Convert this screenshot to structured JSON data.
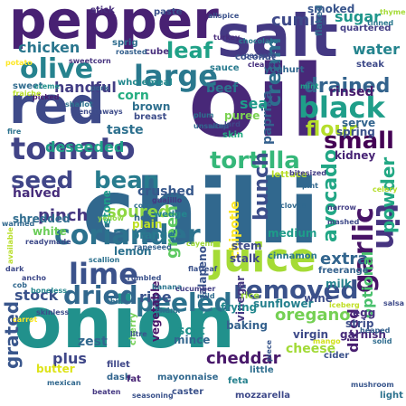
{
  "words": [
    {
      "text": "chilli",
      "color": "#31688e"
    },
    {
      "text": "onion",
      "color": "#21918c"
    },
    {
      "text": "oil",
      "color": "#482878"
    },
    {
      "text": "pepper",
      "color": "#482173"
    },
    {
      "text": "salt",
      "color": "#443983"
    },
    {
      "text": "red",
      "color": "#3e4a89"
    },
    {
      "text": "juice",
      "color": "#a5db36"
    },
    {
      "text": "coriander",
      "color": "#2c728e"
    },
    {
      "text": "lime",
      "color": "#3b528b"
    },
    {
      "text": "tomato",
      "color": "#414487"
    },
    {
      "text": "black",
      "color": "#1f9e89"
    },
    {
      "text": "large",
      "color": "#2a788e"
    },
    {
      "text": "olive",
      "color": "#26828e"
    },
    {
      "text": "garlic",
      "color": "#481467"
    },
    {
      "text": "tortilla",
      "color": "#35b779"
    },
    {
      "text": "removed",
      "color": "#3b528b"
    },
    {
      "text": "peeled",
      "color": "#2c728e"
    },
    {
      "text": "dried",
      "color": "#31688e"
    },
    {
      "text": "tin",
      "color": "#463480"
    },
    {
      "text": "bean",
      "color": "#287c8e"
    },
    {
      "text": "small",
      "color": "#440154"
    },
    {
      "text": "seed",
      "color": "#404688"
    },
    {
      "text": "cream",
      "color": "#2e6e8e"
    },
    {
      "text": "bunch",
      "color": "#3d4d8a"
    },
    {
      "text": "avocado",
      "color": "#21a685"
    },
    {
      "text": "powder",
      "color": "#22a884"
    },
    {
      "text": "drained",
      "color": "#33638d"
    },
    {
      "text": "leaf",
      "color": "#1fa187"
    },
    {
      "text": "cumin",
      "color": "#3e4989"
    },
    {
      "text": "flour",
      "color": "#b5de2b"
    },
    {
      "text": "grated",
      "color": "#39568c"
    },
    {
      "text": "oregano",
      "color": "#75d054"
    },
    {
      "text": "green",
      "color": "#5ec962"
    },
    {
      "text": "stock",
      "color": "#3b528b"
    },
    {
      "text": "pinch",
      "color": "#453781"
    },
    {
      "text": "sugar",
      "color": "#1f968b"
    },
    {
      "text": "water",
      "color": "#25848e"
    },
    {
      "text": "extra",
      "color": "#32658e"
    },
    {
      "text": "soured",
      "color": "#8fd744"
    },
    {
      "text": "optional",
      "color": "#4ac16d"
    },
    {
      "text": "diced",
      "color": "#481f70"
    },
    {
      "text": "cheddar",
      "color": "#48186a"
    },
    {
      "text": "crushed",
      "color": "#38598c"
    },
    {
      "text": "chipotle",
      "color": "#fde725"
    },
    {
      "text": "paprika",
      "color": "#34608d"
    },
    {
      "text": "plus",
      "color": "#3f4788"
    },
    {
      "text": "ripe",
      "color": "#3a548c"
    },
    {
      "text": "shredded",
      "color": "#2f6c8e"
    },
    {
      "text": "halved",
      "color": "#472d7b"
    },
    {
      "text": "deseeded",
      "color": "#1fa088"
    },
    {
      "text": "handful",
      "color": "#433e85"
    },
    {
      "text": "chicken",
      "color": "#2a768e"
    },
    {
      "text": "smoked",
      "color": "#39558c"
    },
    {
      "text": "stem",
      "color": "#3e4c8a"
    },
    {
      "text": "rinsed",
      "color": "#481b6d"
    },
    {
      "text": "serve",
      "color": "#32648e"
    },
    {
      "text": "spring",
      "color": "#3b518b"
    },
    {
      "text": "sea",
      "color": "#1e9b8a"
    },
    {
      "text": "corn",
      "color": "#26ad81"
    },
    {
      "text": "taste",
      "color": "#2d708e"
    },
    {
      "text": "beef",
      "color": "#2b748e"
    },
    {
      "text": "medium",
      "color": "#1e9c89"
    },
    {
      "text": "cheese",
      "color": "#a2da37"
    },
    {
      "text": "soft",
      "color": "#21918c"
    },
    {
      "text": "vinegar",
      "color": "#453882"
    },
    {
      "text": "jalapeno",
      "color": "#3a538b"
    },
    {
      "text": "mince",
      "color": "#31668e"
    },
    {
      "text": "wine",
      "color": "#3d4e8a"
    },
    {
      "text": "butter",
      "color": "#dde318"
    },
    {
      "text": "zest",
      "color": "#31688e"
    },
    {
      "text": "white",
      "color": "#6ccd5a"
    },
    {
      "text": "kidney",
      "color": "#482475"
    },
    {
      "text": "plain",
      "color": "#bddf26"
    },
    {
      "text": "orange",
      "color": "#297a8e"
    },
    {
      "text": "stone",
      "color": "#1e9b8a"
    },
    {
      "text": "vegetable",
      "color": "#481668"
    },
    {
      "text": "sunflower",
      "color": "#26818e"
    },
    {
      "text": "frying",
      "color": "#23888e"
    },
    {
      "text": "baking",
      "color": "#34618d"
    },
    {
      "text": "virgin",
      "color": "#3e4a89"
    },
    {
      "text": "egg",
      "color": "#472f7d"
    },
    {
      "text": "strip",
      "color": "#3d4e8a"
    },
    {
      "text": "garnish",
      "color": "#472a7a"
    },
    {
      "text": "freerange",
      "color": "#34618d"
    },
    {
      "text": "milk",
      "color": "#25838e"
    },
    {
      "text": "cinnamon",
      "color": "#2a778e"
    },
    {
      "text": "stalk",
      "color": "#3f4889"
    },
    {
      "text": "brown",
      "color": "#2e6f8e"
    },
    {
      "text": "breast",
      "color": "#3d4d8a"
    },
    {
      "text": "wedge",
      "color": "#24868e"
    },
    {
      "text": "hot",
      "color": "#31678e"
    },
    {
      "text": "lemon",
      "color": "#2c718e"
    },
    {
      "text": "sauce",
      "color": "#297b8e"
    },
    {
      "text": "steak",
      "color": "#3e4a89"
    },
    {
      "text": "yoghurt",
      "color": "#31688e"
    },
    {
      "text": "paste",
      "color": "#3b518b"
    },
    {
      "text": "cube",
      "color": "#472e7c"
    },
    {
      "text": "wholemeal",
      "color": "#23898e"
    },
    {
      "text": "lettuce",
      "color": "#b8de29"
    },
    {
      "text": "skin",
      "color": "#25ac82"
    },
    {
      "text": "puree",
      "color": "#7ad151"
    },
    {
      "text": "coconut",
      "color": "#3a548c"
    },
    {
      "text": "stick",
      "color": "#472d7b"
    },
    {
      "text": "sprig",
      "color": "#2e6d8e"
    },
    {
      "text": "chocolate",
      "color": "#2a788e"
    },
    {
      "text": "quartered",
      "color": "#433e85"
    },
    {
      "text": "flaked",
      "color": "#31688e"
    },
    {
      "text": "cherry",
      "color": "#73d056"
    },
    {
      "text": "fillet",
      "color": "#3f4788"
    },
    {
      "text": "little",
      "color": "#2e6e8e"
    },
    {
      "text": "mozzarella",
      "color": "#3e4989"
    },
    {
      "text": "caster",
      "color": "#3b528b"
    },
    {
      "text": "dash",
      "color": "#32658e"
    },
    {
      "text": "fat",
      "color": "#482475"
    },
    {
      "text": "mayonnaise",
      "color": "#31688e"
    },
    {
      "text": "feta",
      "color": "#26818e"
    },
    {
      "text": "light",
      "color": "#2c728e"
    },
    {
      "text": "salsa",
      "color": "#3e4a89"
    },
    {
      "text": "cider",
      "color": "#3b528b"
    },
    {
      "text": "mango",
      "color": "#d2e21b"
    },
    {
      "text": "piece",
      "color": "#39568c"
    },
    {
      "text": "litre",
      "color": "#3a548c"
    },
    {
      "text": "chunk",
      "color": "#2d708e"
    },
    {
      "text": "rice",
      "color": "#9dd93b"
    },
    {
      "text": "mild",
      "color": "#2f6c8e"
    },
    {
      "text": "boneless",
      "color": "#24868e"
    },
    {
      "text": "cob",
      "color": "#31688e"
    },
    {
      "text": "banana",
      "color": "#2b758e"
    },
    {
      "text": "cucumber",
      "color": "#433e85"
    },
    {
      "text": "crumbled",
      "color": "#3b528b"
    },
    {
      "text": "rapeseed",
      "color": "#34618d"
    },
    {
      "text": "cocoa",
      "color": "#2e6e8e"
    },
    {
      "text": "guajillo",
      "color": "#453882"
    },
    {
      "text": "pint",
      "color": "#31688e"
    },
    {
      "text": "celery",
      "color": "#b5de2b"
    },
    {
      "text": "mashed",
      "color": "#3e4989"
    },
    {
      "text": "iceberg",
      "color": "#c0df25"
    },
    {
      "text": "sweet",
      "color": "#2f6b8e"
    },
    {
      "text": "potato",
      "color": "#fde725"
    },
    {
      "text": "sweetcorn",
      "color": "#46327e"
    },
    {
      "text": "pork",
      "color": "#34618d"
    },
    {
      "text": "shallot",
      "color": "#2c728e"
    },
    {
      "text": "picked",
      "color": "#481c6e"
    },
    {
      "text": "lengthways",
      "color": "#3e4c8a"
    },
    {
      "text": "fraiche",
      "color": "#b8de29"
    },
    {
      "text": "creme",
      "color": "#21918c"
    },
    {
      "text": "passata",
      "color": "#3d4d8a"
    },
    {
      "text": "allspice",
      "color": "#3b528b"
    },
    {
      "text": "turkey",
      "color": "#472a7a"
    },
    {
      "text": "tinned",
      "color": "#2a788e"
    },
    {
      "text": "roasted",
      "color": "#34608d"
    },
    {
      "text": "cleaned",
      "color": "#46307e"
    },
    {
      "text": "mint",
      "color": "#1fa088"
    },
    {
      "text": "unsalted",
      "color": "#31688e"
    },
    {
      "text": "lard",
      "color": "#3f4788"
    },
    {
      "text": "plum",
      "color": "#2d708e"
    },
    {
      "text": "wrap",
      "color": "#39568c"
    },
    {
      "text": "yellow",
      "color": "#8fd744"
    },
    {
      "text": "bitesized",
      "color": "#433e85"
    },
    {
      "text": "readymade",
      "color": "#3e4a89"
    },
    {
      "text": "available",
      "color": "#b8de29"
    },
    {
      "text": "warmed",
      "color": "#31688e"
    },
    {
      "text": "scallion",
      "color": "#2c718e"
    },
    {
      "text": "flatleaf",
      "color": "#3b528b"
    },
    {
      "text": "cayenne",
      "color": "#a0da39"
    },
    {
      "text": "ancho",
      "color": "#3e4989"
    },
    {
      "text": "thin",
      "color": "#2e6e8e"
    },
    {
      "text": "skinless",
      "color": "#3d4d8a"
    },
    {
      "text": "carrot",
      "color": "#fde725"
    },
    {
      "text": "mexican",
      "color": "#31688e"
    },
    {
      "text": "beaten",
      "color": "#453882"
    },
    {
      "text": "seasoning",
      "color": "#3b528b"
    },
    {
      "text": "mushroom",
      "color": "#39568c"
    },
    {
      "text": "solid",
      "color": "#2f6c8e"
    },
    {
      "text": "heaped",
      "color": "#34618d"
    },
    {
      "text": "thyme",
      "color": "#a5db36"
    },
    {
      "text": "dark",
      "color": "#3e4a89"
    },
    {
      "text": "fire",
      "color": "#2c728e"
    },
    {
      "text": "narrow",
      "color": "#433e85"
    },
    {
      "text": "cloves",
      "color": "#31688e"
    }
  ]
}
